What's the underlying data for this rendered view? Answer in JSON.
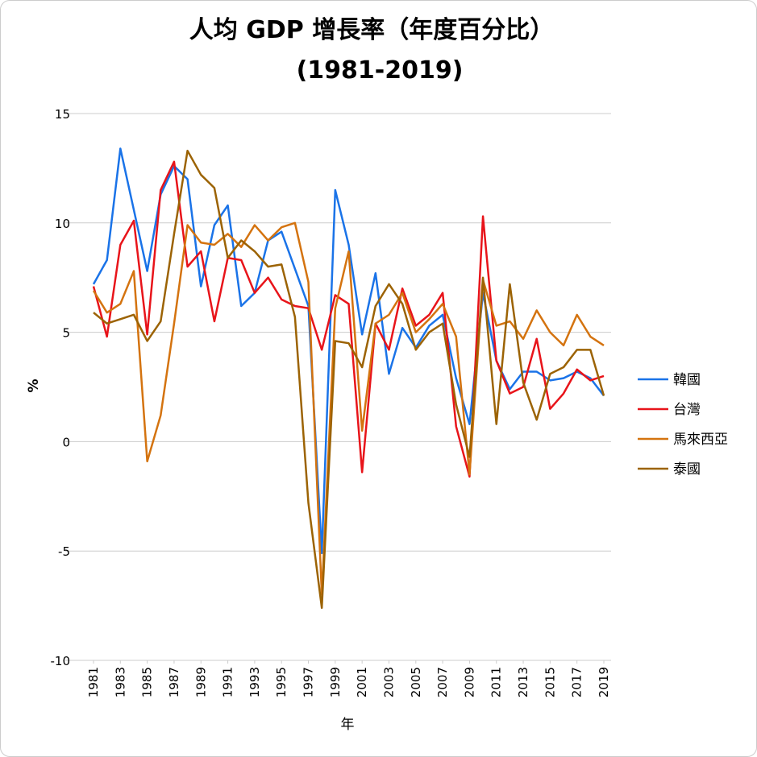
{
  "chart_data": {
    "type": "line",
    "title": "人均 GDP 增長率（年度百分比）",
    "subtitle": "(1981-2019)",
    "x_label": "年",
    "y_label": "%",
    "x": [
      1981,
      1982,
      1983,
      1984,
      1985,
      1986,
      1987,
      1988,
      1989,
      1990,
      1991,
      1992,
      1993,
      1994,
      1995,
      1996,
      1997,
      1998,
      1999,
      2000,
      2001,
      2002,
      2003,
      2004,
      2005,
      2006,
      2007,
      2008,
      2009,
      2010,
      2011,
      2012,
      2013,
      2014,
      2015,
      2016,
      2017,
      2018,
      2019
    ],
    "xlim": [
      1981,
      2019
    ],
    "xticks": [
      1981,
      1983,
      1985,
      1987,
      1989,
      1991,
      1993,
      1995,
      1997,
      1999,
      2001,
      2003,
      2005,
      2007,
      2009,
      2011,
      2013,
      2015,
      2017,
      2019
    ],
    "ylim": [
      -10,
      15
    ],
    "yticks": [
      -10,
      -5,
      0,
      5,
      10,
      15
    ],
    "grid": true,
    "legend": "right",
    "series": [
      {
        "name": "韓國",
        "color": "#1a73e8",
        "values": [
          7.2,
          8.3,
          13.4,
          10.6,
          7.8,
          11.3,
          12.6,
          12.0,
          7.1,
          9.9,
          10.8,
          6.2,
          6.8,
          9.2,
          9.6,
          7.9,
          6.2,
          -5.1,
          11.5,
          9.0,
          4.9,
          7.7,
          3.1,
          5.2,
          4.3,
          5.3,
          5.8,
          2.9,
          0.8,
          6.8,
          3.7,
          2.4,
          3.2,
          3.2,
          2.8,
          2.9,
          3.2,
          2.9,
          2.1
        ]
      },
      {
        "name": "台灣",
        "color": "#e8141a",
        "values": [
          7.1,
          4.8,
          9.0,
          10.1,
          4.9,
          11.5,
          12.8,
          8.0,
          8.7,
          5.5,
          8.4,
          8.3,
          6.8,
          7.5,
          6.5,
          6.2,
          6.1,
          4.2,
          6.7,
          6.3,
          -1.4,
          5.4,
          4.2,
          7.0,
          5.3,
          5.8,
          6.8,
          0.7,
          -1.6,
          10.3,
          3.7,
          2.2,
          2.5,
          4.7,
          1.5,
          2.2,
          3.3,
          2.8,
          3.0
        ]
      },
      {
        "name": "馬來西亞",
        "color": "#d4730f",
        "values": [
          6.9,
          5.9,
          6.3,
          7.8,
          -0.9,
          1.2,
          5.4,
          9.9,
          9.1,
          9.0,
          9.5,
          8.9,
          9.9,
          9.2,
          9.8,
          10.0,
          7.3,
          -7.0,
          6.1,
          8.7,
          0.5,
          5.4,
          5.8,
          6.8,
          5.0,
          5.6,
          6.3,
          4.8,
          -1.5,
          7.4,
          5.3,
          5.5,
          4.7,
          6.0,
          5.0,
          4.4,
          5.8,
          4.8,
          4.4
        ]
      },
      {
        "name": "泰國",
        "color": "#9c6304",
        "values": [
          5.9,
          5.4,
          5.6,
          5.8,
          4.6,
          5.5,
          9.5,
          13.3,
          12.2,
          11.6,
          8.4,
          9.2,
          8.7,
          8.0,
          8.1,
          5.7,
          -2.8,
          -7.6,
          4.6,
          4.5,
          3.4,
          6.2,
          7.2,
          6.3,
          4.2,
          5.0,
          5.4,
          1.7,
          -0.7,
          7.5,
          0.8,
          7.2,
          2.7,
          1.0,
          3.1,
          3.4,
          4.2,
          4.2,
          2.1
        ]
      }
    ]
  }
}
